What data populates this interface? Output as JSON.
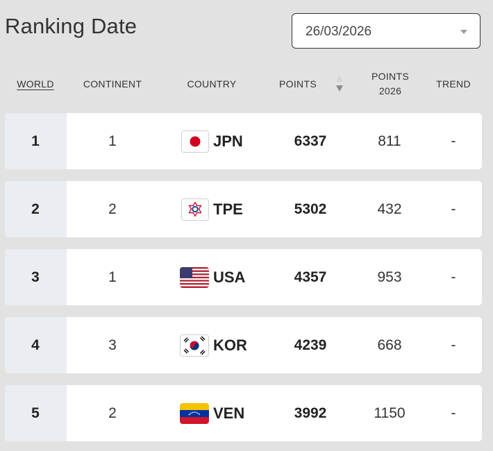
{
  "page_title": "Ranking Date",
  "date_select": {
    "value": "26/03/2026"
  },
  "columns": {
    "world": "WORLD",
    "continent": "CONTINENT",
    "country": "COUNTRY",
    "points": "POINTS",
    "points_year_line1": "POINTS",
    "points_year_line2": "2026",
    "trend": "TREND"
  },
  "rows": [
    {
      "world": "1",
      "continent": "1",
      "country": "JPN",
      "flag": "japan-flag",
      "points": "6337",
      "points_year": "811",
      "trend": "-"
    },
    {
      "world": "2",
      "continent": "2",
      "country": "TPE",
      "flag": "chinese-taipei-flag",
      "points": "5302",
      "points_year": "432",
      "trend": "-"
    },
    {
      "world": "3",
      "continent": "1",
      "country": "USA",
      "flag": "usa-flag",
      "points": "4357",
      "points_year": "953",
      "trend": "-"
    },
    {
      "world": "4",
      "continent": "3",
      "country": "KOR",
      "flag": "korea-flag",
      "points": "4239",
      "points_year": "668",
      "trend": "-"
    },
    {
      "world": "5",
      "continent": "2",
      "country": "VEN",
      "flag": "venezuela-flag",
      "points": "3992",
      "points_year": "1150",
      "trend": "-"
    }
  ],
  "colors": {
    "background": "#e2e2e2",
    "row": "#ffffff",
    "rank_cell": "#eaedf1",
    "text": "#222222"
  }
}
